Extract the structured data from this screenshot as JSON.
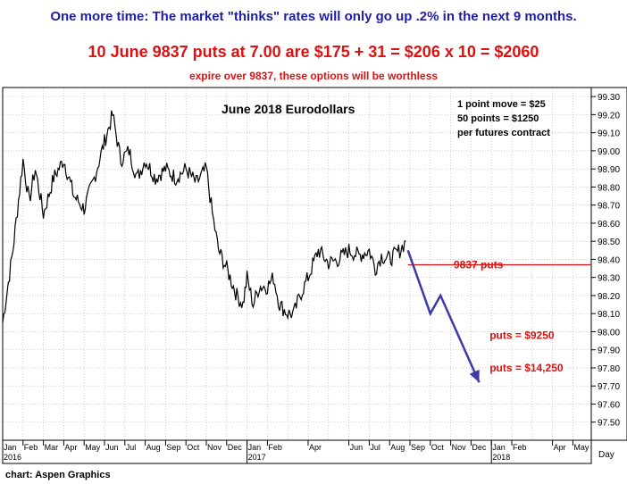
{
  "header": {
    "headline": "One more time: The market \"thinks\" rates will only go up .2% in the next 9 months.",
    "offer": "10 June 9837 puts at 7.00 are $175 + 31 = $206 x 10 = $2060",
    "expire_note": "expire over 9837, these options will be worthless"
  },
  "footer": {
    "credit": "chart: Aspen Graphics"
  },
  "colors": {
    "headline": "#1e1ea8",
    "red": "#dd1111",
    "price": "#000000",
    "arrow": "#3a3aa8",
    "grid": "#b0b0b0"
  },
  "chart_data": {
    "type": "line",
    "title": "June 2018 Eurodollars",
    "info_lines": [
      "1 point move = $25",
      "50 points = $1250",
      "per futures contract"
    ],
    "y_tick_labels": [
      "97.50",
      "97.60",
      "97.70",
      "97.80",
      "97.90",
      "98.00",
      "98.10",
      "98.20",
      "98.30",
      "98.40",
      "98.50",
      "98.60",
      "98.70",
      "98.80",
      "98.90",
      "99.00",
      "99.10",
      "99.20",
      "99.30"
    ],
    "ylim": [
      97.4,
      99.35
    ],
    "x_unit_label": "Day",
    "month_labels": [
      {
        "m": 0,
        "t": "Jan"
      },
      {
        "m": 1,
        "t": "Feb"
      },
      {
        "m": 2,
        "t": "Mar"
      },
      {
        "m": 3,
        "t": "Apr"
      },
      {
        "m": 4,
        "t": "May"
      },
      {
        "m": 5,
        "t": "Jun"
      },
      {
        "m": 6,
        "t": "Jul"
      },
      {
        "m": 7,
        "t": "Aug"
      },
      {
        "m": 8,
        "t": "Sep"
      },
      {
        "m": 9,
        "t": "Oct"
      },
      {
        "m": 10,
        "t": "Nov"
      },
      {
        "m": 11,
        "t": "Dec"
      },
      {
        "m": 12,
        "t": "Jan"
      },
      {
        "m": 13,
        "t": "Feb"
      },
      {
        "m": 15,
        "t": "Apr"
      },
      {
        "m": 17,
        "t": "Jun"
      },
      {
        "m": 18,
        "t": "Jul"
      },
      {
        "m": 19,
        "t": "Aug"
      },
      {
        "m": 20,
        "t": "Sep"
      },
      {
        "m": 21,
        "t": "Oct"
      },
      {
        "m": 22,
        "t": "Nov"
      },
      {
        "m": 23,
        "t": "Dec"
      },
      {
        "m": 24,
        "t": "Jan"
      },
      {
        "m": 25,
        "t": "Feb"
      },
      {
        "m": 27,
        "t": "Apr"
      },
      {
        "m": 28,
        "t": "May"
      }
    ],
    "year_labels": [
      {
        "m": 0,
        "t": "2016"
      },
      {
        "m": 12,
        "t": "2017"
      },
      {
        "m": 24,
        "t": "2018"
      }
    ],
    "series": [
      {
        "values": [
          [
            0,
            98.05
          ],
          [
            0.5,
            98.45
          ],
          [
            1,
            98.95
          ],
          [
            1.3,
            98.72
          ],
          [
            1.6,
            98.9
          ],
          [
            2,
            98.65
          ],
          [
            2.5,
            98.85
          ],
          [
            3,
            98.95
          ],
          [
            3.5,
            98.75
          ],
          [
            4,
            98.68
          ],
          [
            4.5,
            98.85
          ],
          [
            5,
            99.05
          ],
          [
            5.4,
            99.2
          ],
          [
            5.8,
            98.95
          ],
          [
            6.2,
            99.0
          ],
          [
            6.6,
            98.85
          ],
          [
            7,
            98.95
          ],
          [
            7.5,
            98.85
          ],
          [
            8,
            98.9
          ],
          [
            8.5,
            98.85
          ],
          [
            9,
            98.9
          ],
          [
            9.5,
            98.82
          ],
          [
            10,
            98.9
          ],
          [
            10.3,
            98.65
          ],
          [
            10.6,
            98.45
          ],
          [
            11,
            98.35
          ],
          [
            11.5,
            98.2
          ],
          [
            11.8,
            98.15
          ],
          [
            12,
            98.3
          ],
          [
            12.3,
            98.15
          ],
          [
            12.6,
            98.25
          ],
          [
            13,
            98.25
          ],
          [
            13.3,
            98.3
          ],
          [
            13.6,
            98.15
          ],
          [
            14,
            98.1
          ],
          [
            14.3,
            98.1
          ],
          [
            14.6,
            98.2
          ],
          [
            15,
            98.3
          ],
          [
            15.5,
            98.45
          ],
          [
            16,
            98.38
          ],
          [
            16.5,
            98.4
          ],
          [
            17,
            98.45
          ],
          [
            17.5,
            98.42
          ],
          [
            18,
            98.45
          ],
          [
            18.3,
            98.35
          ],
          [
            18.6,
            98.42
          ],
          [
            19,
            98.4
          ],
          [
            19.5,
            98.45
          ],
          [
            19.8,
            98.5
          ]
        ]
      }
    ],
    "forecast_arrow": [
      [
        19.9,
        98.45
      ],
      [
        21,
        98.1
      ],
      [
        21.5,
        98.2
      ],
      [
        23.4,
        97.72
      ]
    ],
    "strike_line": {
      "y": 98.37,
      "from_m": 19.9,
      "label": "9837 puts"
    },
    "annotations": [
      {
        "text": "puts = $9250",
        "m": 24,
        "y": 97.98
      },
      {
        "text": "puts = $14,250",
        "m": 24,
        "y": 97.8
      }
    ]
  }
}
